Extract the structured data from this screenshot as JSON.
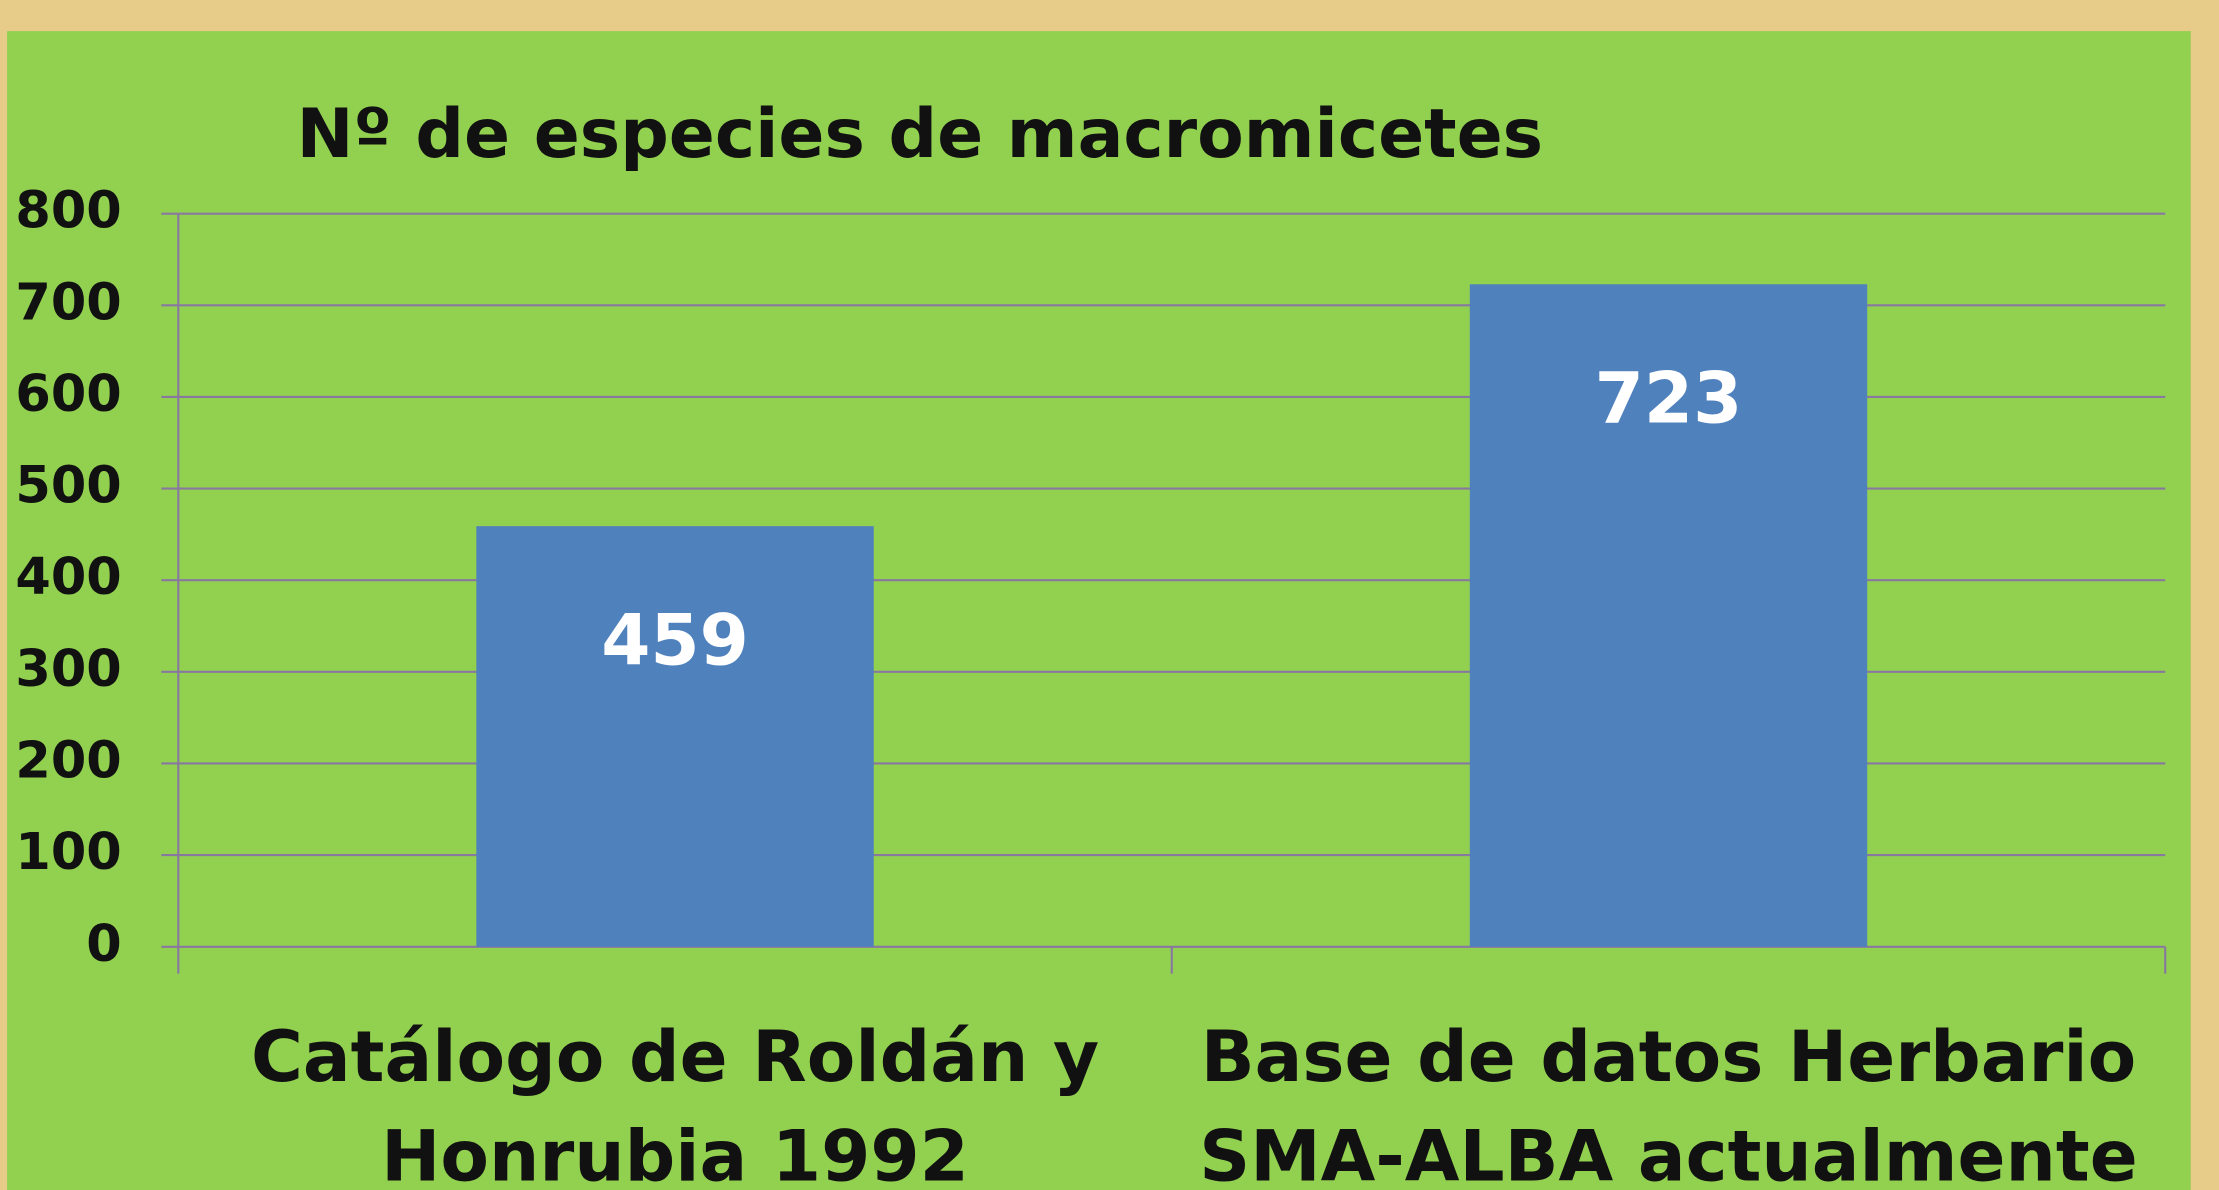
{
  "chart_data": {
    "type": "bar",
    "title": "Nº de especies de macromicetes",
    "categories": [
      "Catálogo de Roldán y\nHonrubia 1992",
      "Base de datos Herbario\nSMA-ALBA actualmente"
    ],
    "values": [
      459,
      723
    ],
    "color": "#4f81bd",
    "ylim": [
      0,
      800
    ],
    "yticks": [
      0,
      100,
      200,
      300,
      400,
      500,
      600,
      700,
      800
    ],
    "grid": true
  }
}
